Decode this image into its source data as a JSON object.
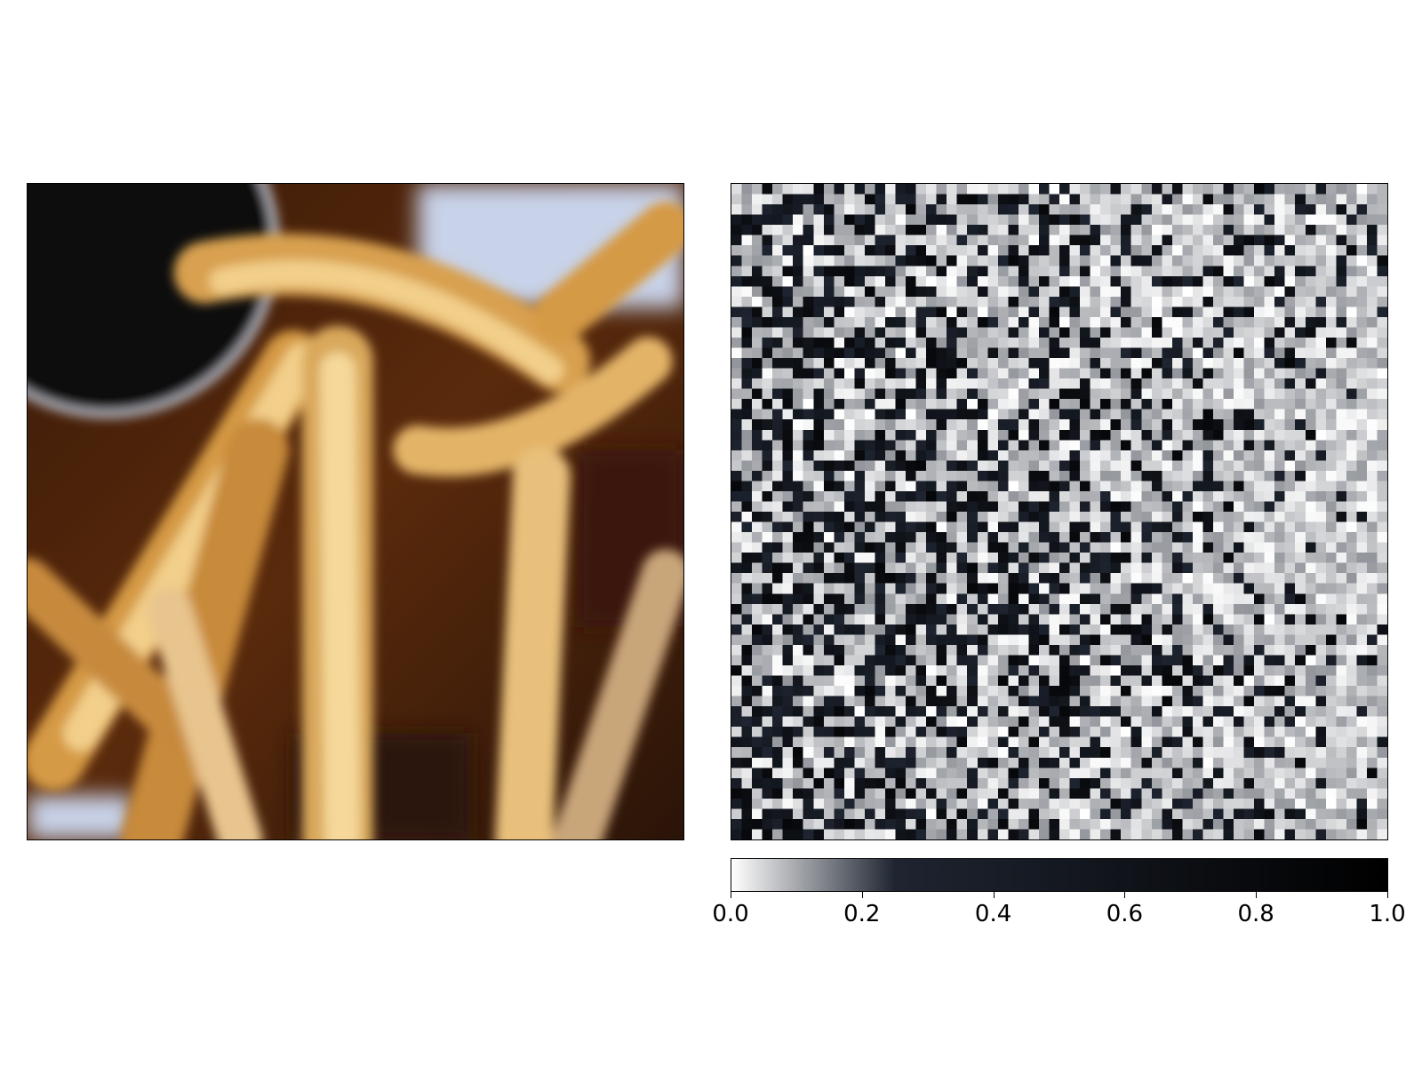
{
  "chart_data": [
    {
      "type": "image",
      "subject": "pixelated photo of french fries with a dark dipping-sauce cup in the top-left corner",
      "resolution": [
        64,
        64
      ],
      "palette": {
        "dark_cup": "#0c0a09",
        "cup_rim": "#a8a8b0",
        "fry_light": "#f2cf8a",
        "fry_mid": "#d59a45",
        "shadow": "#4a2410",
        "plate": "#c8d2e8"
      }
    },
    {
      "type": "heatmap",
      "resolution": [
        64,
        64
      ],
      "colormap": [
        "#ffffff",
        "#1e2430",
        "#000000"
      ],
      "vmin": 0.0,
      "vmax": 1.0,
      "colorbar": {
        "orientation": "horizontal",
        "position": "bottom",
        "ticks": [
          "0.0",
          "0.2",
          "0.4",
          "0.6",
          "0.8",
          "1.0"
        ]
      }
    }
  ]
}
